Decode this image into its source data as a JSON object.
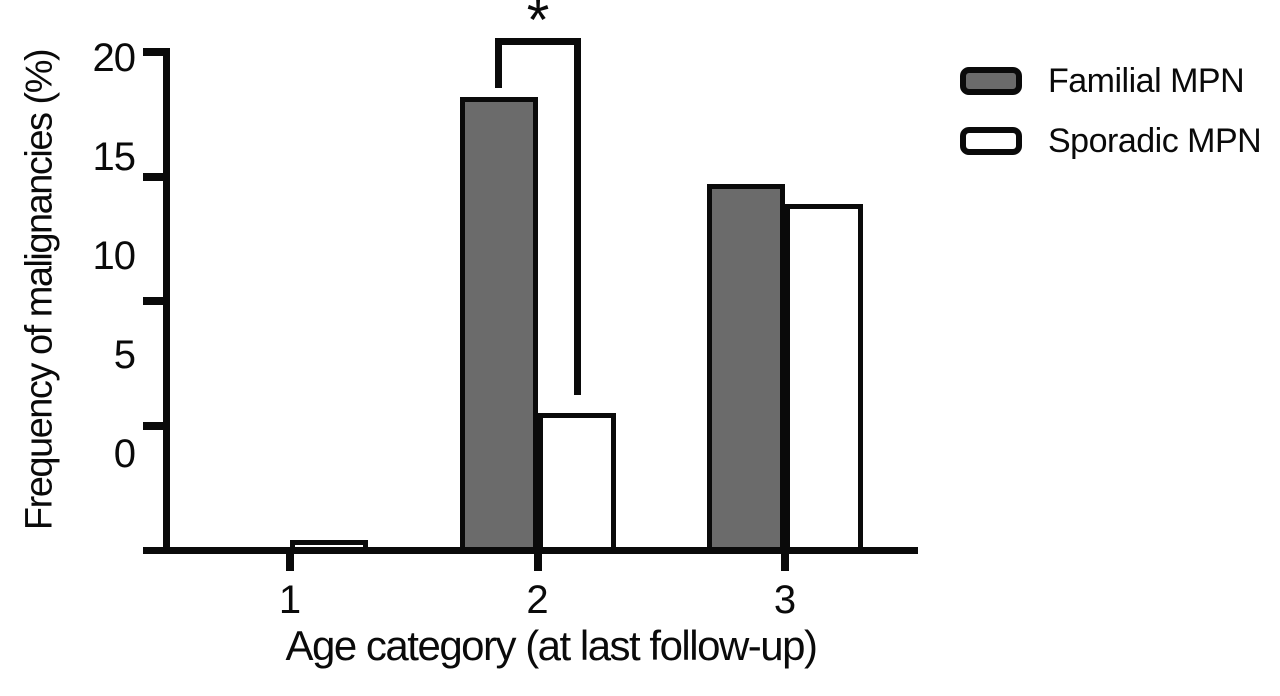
{
  "figure": {
    "y_axis_title": "Frequency of malignancies (%)",
    "x_axis_title": "Age category (at last follow-up)"
  },
  "legend": {
    "position": "top-right",
    "items": [
      {
        "label": "Familial MPN",
        "swatch": "familial_fill"
      },
      {
        "label": "Sporadic MPN",
        "swatch": "sporadic_fill"
      }
    ]
  },
  "colors": {
    "ink": "#0a0a0a",
    "background": "#ffffff",
    "familial_fill": "#6b6b6b",
    "sporadic_fill": "#ffffff"
  },
  "chart_data": {
    "type": "bar",
    "title": "",
    "xlabel": "Age category (at last follow-up)",
    "ylabel": "Frequency of malignancies (%)",
    "categories": [
      "1",
      "2",
      "3"
    ],
    "series": [
      {
        "name": "Familial MPN",
        "fill": "familial_fill",
        "values": [
          0,
          18.2,
          14.7
        ]
      },
      {
        "name": "Sporadic MPN",
        "fill": "sporadic_fill",
        "values": [
          0.4,
          5.5,
          13.9
        ]
      }
    ],
    "ylim": [
      0,
      20
    ],
    "yticks": [
      20,
      15,
      10,
      5,
      0
    ],
    "grid": false,
    "legend_position": "top-right",
    "annotation": {
      "type": "significance-bracket",
      "text": "*",
      "category": "2",
      "between": [
        "Familial MPN",
        "Sporadic MPN"
      ]
    }
  }
}
